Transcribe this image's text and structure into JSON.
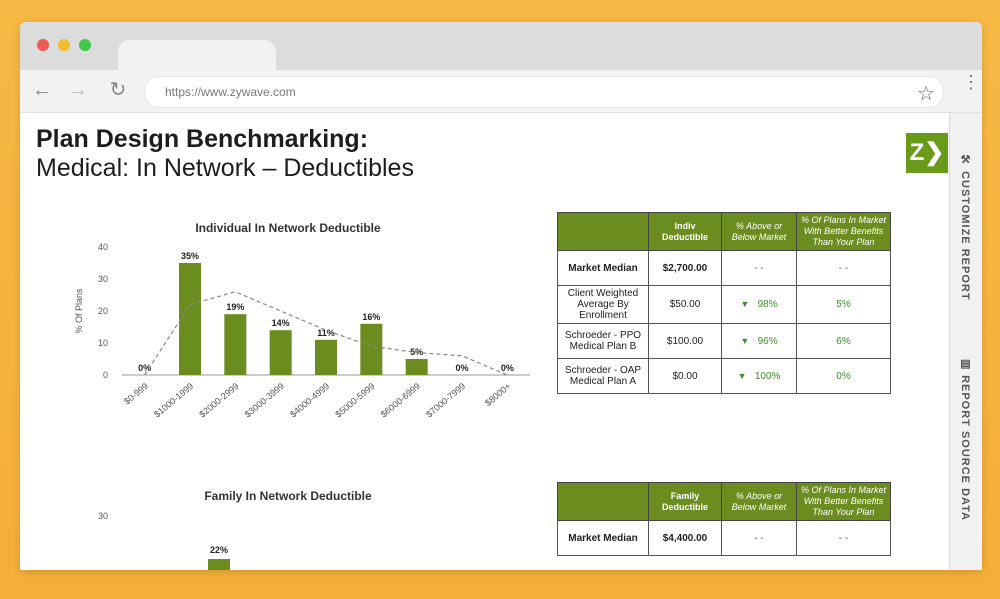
{
  "browser": {
    "url": "https://www.zywave.com",
    "window_dots": [
      "#ee5a55",
      "#f2bc2f",
      "#40c84a"
    ]
  },
  "page": {
    "title_line1": "Plan Design Benchmarking:",
    "title_line2": "Medical: In Network – Deductibles",
    "logo": "Z❯"
  },
  "side_panel": {
    "customize": "CUSTOMIZE REPORT",
    "source": "REPORT SOURCE DATA"
  },
  "chart_data": [
    {
      "type": "bar",
      "title": "Individual In Network Deductible",
      "ylabel": "% Of Plans",
      "categories": [
        "$0-999",
        "$1000-1999",
        "$2000-2999",
        "$3000-3999",
        "$4000-4999",
        "$5000-5999",
        "$6000-6999",
        "$7000-7999",
        "$8000+"
      ],
      "values": [
        0,
        35,
        19,
        14,
        11,
        16,
        5,
        0,
        0
      ],
      "data_labels": [
        "0%",
        "35%",
        "19%",
        "14%",
        "11%",
        "16%",
        "5%",
        "0%",
        "0%"
      ],
      "trend": [
        0,
        22,
        26,
        20,
        14,
        9,
        7,
        6,
        0
      ],
      "ylim": [
        0,
        40
      ],
      "yticks": [
        0,
        10,
        20,
        30,
        40
      ],
      "bar_color": "#6b8c1e"
    },
    {
      "type": "bar",
      "title": "Family In Network Deductible",
      "ylabel": "% Of Plans",
      "yticks_visible": [
        30
      ],
      "visible_label": "22%",
      "values": [
        22
      ],
      "bar_color": "#6b8c1e"
    }
  ],
  "table1": {
    "headers": [
      "",
      "Indiv Deductible",
      "% Above or Below Market",
      "% Of Plans In Market With Better Benefits Than Your Plan"
    ],
    "rows": [
      {
        "label": "Market Median",
        "value": "$2,700.00",
        "above": "- -",
        "better": "- -"
      },
      {
        "label": "Client Weighted Average By Enrollment",
        "value": "$50.00",
        "above": "98%",
        "better": "5%"
      },
      {
        "label": "Schroeder - PPO Medical Plan B",
        "value": "$100.00",
        "above": "96%",
        "better": "6%"
      },
      {
        "label": "Schroeder - OAP Medical Plan A",
        "value": "$0.00",
        "above": "100%",
        "better": "0%"
      }
    ]
  },
  "table2": {
    "headers": [
      "",
      "Family Deductible",
      "% Above or Below Market",
      "% Of Plans In Market With Better Benefits Than Your Plan"
    ],
    "rows": [
      {
        "label": "Market Median",
        "value": "$4,400.00",
        "above": "- -",
        "better": "- -"
      }
    ]
  }
}
